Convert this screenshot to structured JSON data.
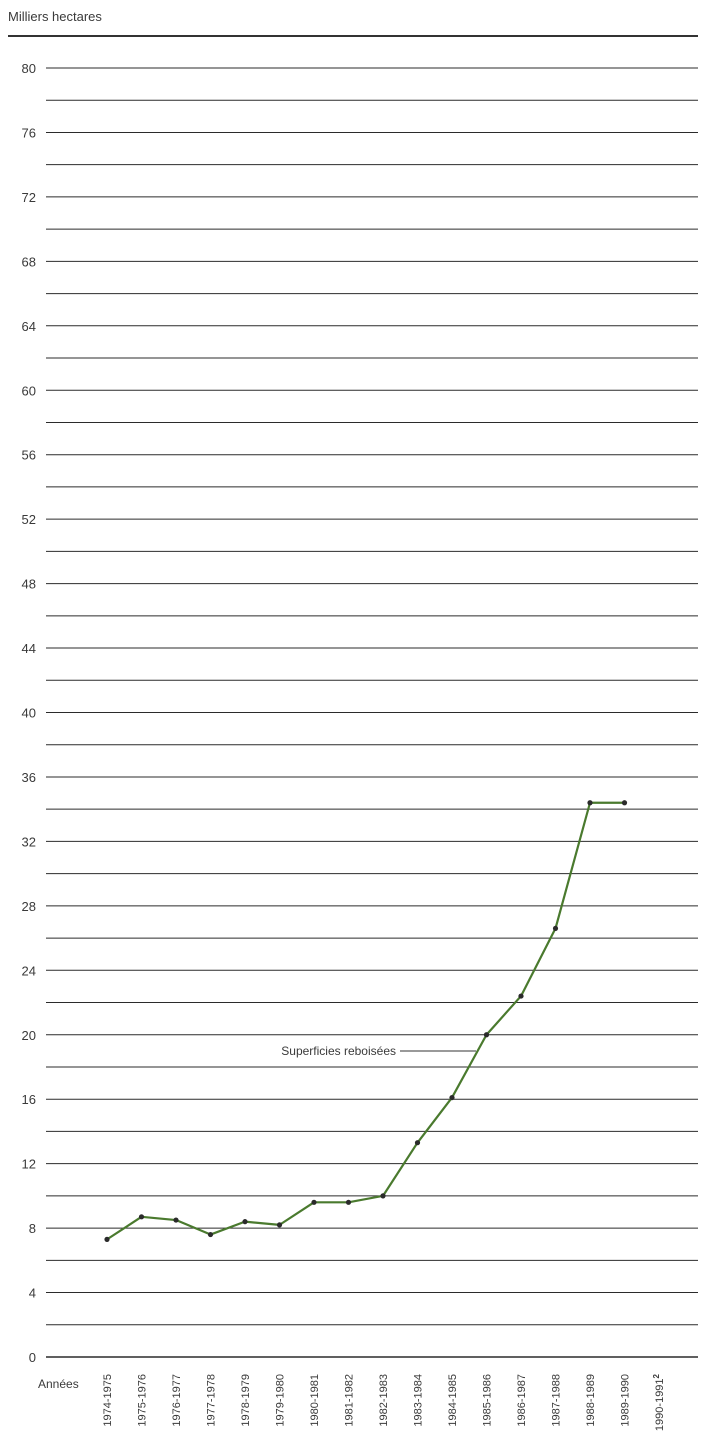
{
  "chart_data": {
    "type": "line",
    "title": "Milliers hectares",
    "xlabel": "Années",
    "ylabel": "Milliers hectares",
    "ylim": [
      0,
      80
    ],
    "yticks": [
      0,
      4,
      8,
      12,
      16,
      20,
      24,
      28,
      32,
      36,
      40,
      44,
      48,
      52,
      56,
      60,
      64,
      68,
      72,
      76,
      80
    ],
    "grid": true,
    "categories": [
      "1974-1975",
      "1975-1976",
      "1976-1977",
      "1977-1978",
      "1978-1979",
      "1979-1980",
      "1980-1981",
      "1981-1982",
      "1982-1983",
      "1983-1984",
      "1984-1985",
      "1985-1986",
      "1986-1987",
      "1987-1988",
      "1988-1989",
      "1989-1990",
      "1990-1991"
    ],
    "last_category_footnote": "2",
    "series": [
      {
        "name": "Superficies reboisées",
        "color": "#4a7a2e",
        "values": [
          7.3,
          8.7,
          8.5,
          7.6,
          8.4,
          8.2,
          9.6,
          9.6,
          10.0,
          13.3,
          16.1,
          20.0,
          22.4,
          26.6,
          34.4,
          34.4,
          null
        ]
      }
    ],
    "annotation": "Superficies reboisées"
  }
}
